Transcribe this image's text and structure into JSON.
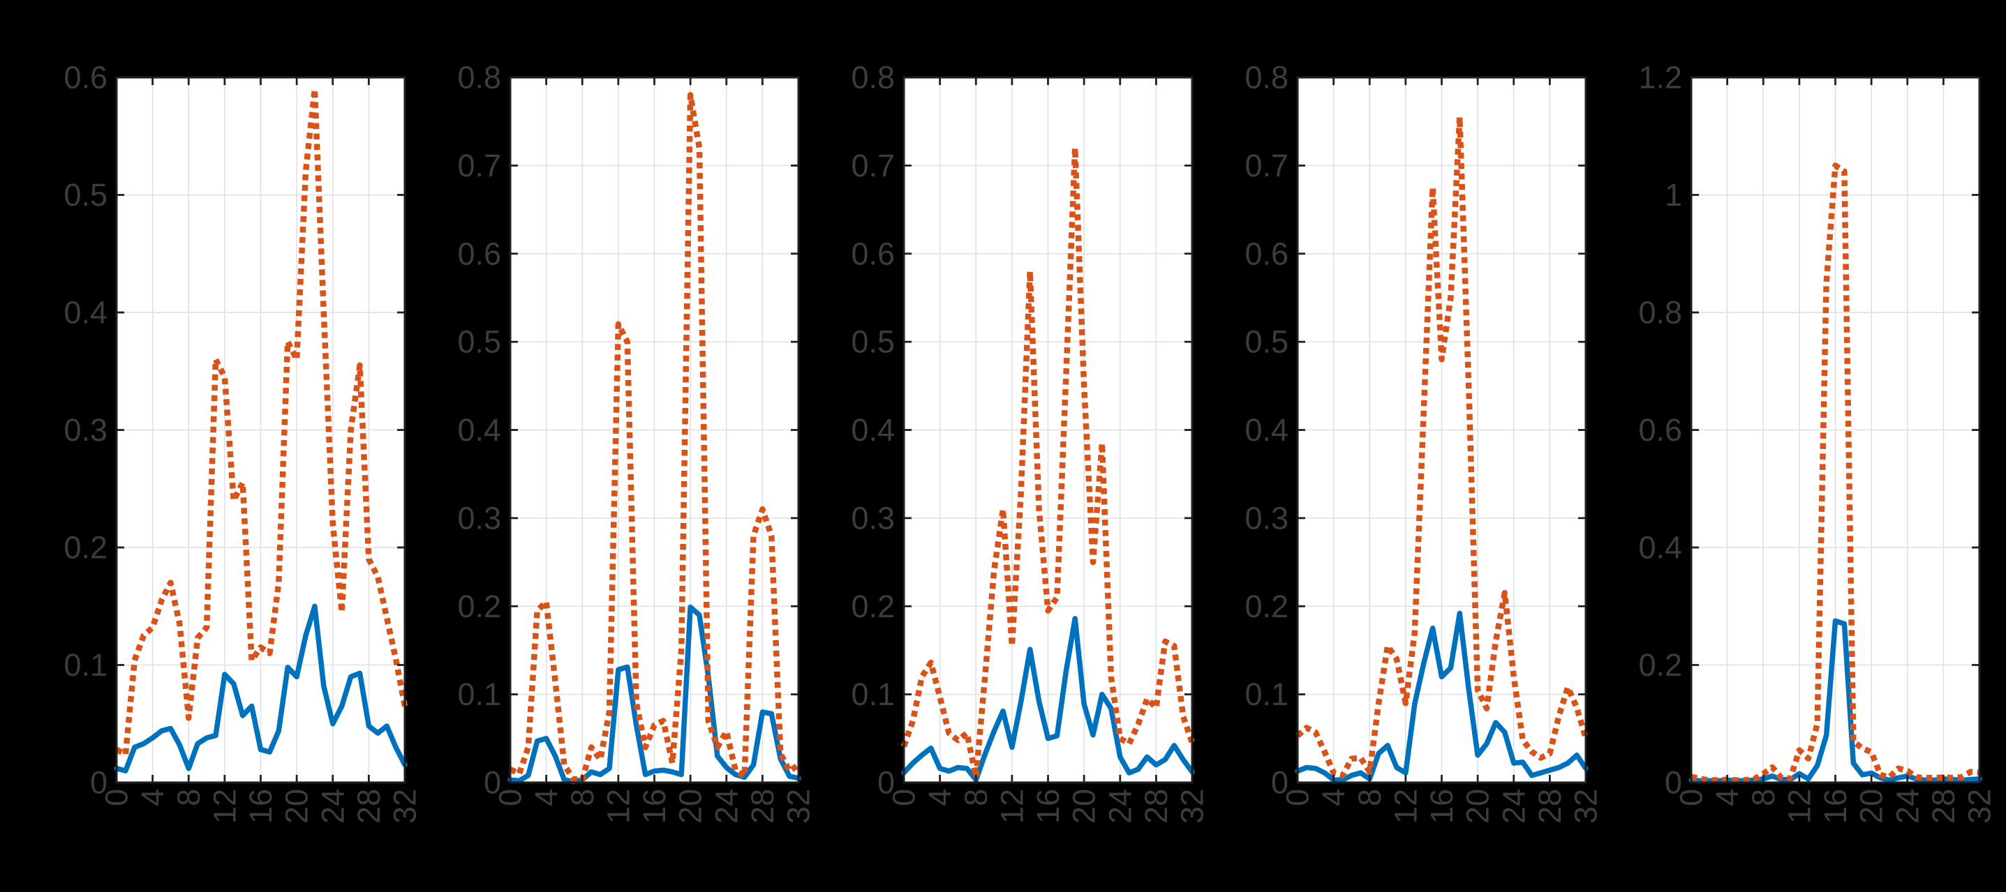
{
  "figure": {
    "background": "#000000",
    "plot_background": "#ffffff",
    "axis_color": "#1f1f1f",
    "grid_color": "#e3e3e3",
    "tick_label_color": "#3c3c3c",
    "tick_font_size": 45,
    "solid_line_color": "#0072BD",
    "dotted_line_color": "#D95319"
  },
  "chart_data": [
    {
      "type": "line",
      "title": "",
      "xlabel": "",
      "ylabel": "",
      "grid": true,
      "legend": null,
      "xlim": [
        0,
        32
      ],
      "ylim": [
        0,
        0.6
      ],
      "xtick_labels": [
        "0",
        "4",
        "8",
        "12",
        "16",
        "20",
        "24",
        "28",
        "32"
      ],
      "ytick_labels": [
        "0",
        "0.1",
        "0.2",
        "0.3",
        "0.4",
        "0.5",
        "0.6"
      ],
      "x": [
        0,
        1,
        2,
        3,
        4,
        5,
        6,
        7,
        8,
        9,
        10,
        11,
        12,
        13,
        14,
        15,
        16,
        17,
        18,
        19,
        20,
        21,
        22,
        23,
        24,
        25,
        26,
        27,
        28,
        29,
        30,
        31,
        32
      ],
      "series": [
        {
          "name": "solid-blue",
          "line_style": "solid",
          "color": "#0072BD",
          "values": [
            0.012,
            0.01,
            0.03,
            0.033,
            0.038,
            0.044,
            0.046,
            0.032,
            0.012,
            0.033,
            0.038,
            0.04,
            0.092,
            0.084,
            0.057,
            0.065,
            0.028,
            0.026,
            0.044,
            0.098,
            0.09,
            0.125,
            0.15,
            0.082,
            0.05,
            0.065,
            0.09,
            0.093,
            0.048,
            0.042,
            0.048,
            0.03,
            0.015
          ]
        },
        {
          "name": "dotted-orange",
          "line_style": "dotted",
          "color": "#D95319",
          "values": [
            0.028,
            0.024,
            0.104,
            0.125,
            0.132,
            0.155,
            0.17,
            0.135,
            0.055,
            0.123,
            0.132,
            0.36,
            0.345,
            0.24,
            0.255,
            0.104,
            0.115,
            0.11,
            0.17,
            0.375,
            0.36,
            0.52,
            0.59,
            0.4,
            0.22,
            0.145,
            0.3,
            0.355,
            0.19,
            0.175,
            0.14,
            0.105,
            0.065
          ]
        }
      ]
    },
    {
      "type": "line",
      "title": "",
      "xlabel": "",
      "ylabel": "",
      "grid": true,
      "legend": null,
      "xlim": [
        0,
        32
      ],
      "ylim": [
        0,
        0.8
      ],
      "xtick_labels": [
        "0",
        "4",
        "8",
        "12",
        "16",
        "20",
        "24",
        "28",
        "32"
      ],
      "ytick_labels": [
        "0",
        "0.1",
        "0.2",
        "0.3",
        "0.4",
        "0.5",
        "0.6",
        "0.7",
        "0.8"
      ],
      "x": [
        0,
        1,
        2,
        3,
        4,
        5,
        6,
        7,
        8,
        9,
        10,
        11,
        12,
        13,
        14,
        15,
        16,
        17,
        18,
        19,
        20,
        21,
        22,
        23,
        24,
        25,
        26,
        27,
        28,
        29,
        30,
        31,
        32
      ],
      "series": [
        {
          "name": "solid-blue",
          "line_style": "solid",
          "color": "#0072BD",
          "values": [
            0.003,
            0.002,
            0.008,
            0.047,
            0.05,
            0.03,
            0.003,
            0.001,
            0.003,
            0.012,
            0.009,
            0.016,
            0.128,
            0.131,
            0.065,
            0.009,
            0.013,
            0.014,
            0.012,
            0.009,
            0.199,
            0.19,
            0.12,
            0.03,
            0.017,
            0.009,
            0.006,
            0.02,
            0.08,
            0.078,
            0.027,
            0.007,
            0.005
          ]
        },
        {
          "name": "dotted-orange",
          "line_style": "dotted",
          "color": "#D95319",
          "values": [
            0.015,
            0.01,
            0.04,
            0.195,
            0.205,
            0.115,
            0.02,
            0.004,
            0.003,
            0.04,
            0.026,
            0.08,
            0.52,
            0.5,
            0.09,
            0.04,
            0.065,
            0.07,
            0.022,
            0.15,
            0.78,
            0.72,
            0.07,
            0.04,
            0.058,
            0.014,
            0.007,
            0.28,
            0.31,
            0.28,
            0.033,
            0.013,
            0.02
          ]
        }
      ]
    },
    {
      "type": "line",
      "title": "",
      "xlabel": "",
      "ylabel": "",
      "grid": true,
      "legend": null,
      "xlim": [
        0,
        32
      ],
      "ylim": [
        0,
        0.8
      ],
      "xtick_labels": [
        "0",
        "4",
        "8",
        "12",
        "16",
        "20",
        "24",
        "28",
        "32"
      ],
      "ytick_labels": [
        "0",
        "0.1",
        "0.2",
        "0.3",
        "0.4",
        "0.5",
        "0.6",
        "0.7",
        "0.8"
      ],
      "x": [
        0,
        1,
        2,
        3,
        4,
        5,
        6,
        7,
        8,
        9,
        10,
        11,
        12,
        13,
        14,
        15,
        16,
        17,
        18,
        19,
        20,
        21,
        22,
        23,
        24,
        25,
        26,
        27,
        28,
        29,
        30,
        31,
        32
      ],
      "series": [
        {
          "name": "solid-blue",
          "line_style": "solid",
          "color": "#0072BD",
          "values": [
            0.011,
            0.022,
            0.031,
            0.039,
            0.016,
            0.013,
            0.017,
            0.016,
            0.003,
            0.032,
            0.058,
            0.081,
            0.04,
            0.092,
            0.151,
            0.092,
            0.05,
            0.053,
            0.126,
            0.186,
            0.089,
            0.054,
            0.1,
            0.084,
            0.029,
            0.011,
            0.015,
            0.029,
            0.02,
            0.026,
            0.042,
            0.026,
            0.012
          ]
        },
        {
          "name": "dotted-orange",
          "line_style": "dotted",
          "color": "#D95319",
          "values": [
            0.041,
            0.07,
            0.12,
            0.136,
            0.097,
            0.056,
            0.048,
            0.056,
            0.006,
            0.12,
            0.24,
            0.31,
            0.155,
            0.33,
            0.58,
            0.31,
            0.195,
            0.21,
            0.46,
            0.72,
            0.45,
            0.25,
            0.385,
            0.12,
            0.05,
            0.044,
            0.066,
            0.095,
            0.085,
            0.16,
            0.155,
            0.075,
            0.045
          ]
        }
      ]
    },
    {
      "type": "line",
      "title": "",
      "xlabel": "",
      "ylabel": "",
      "grid": true,
      "legend": null,
      "xlim": [
        0,
        32
      ],
      "ylim": [
        0,
        0.8
      ],
      "xtick_labels": [
        "0",
        "4",
        "8",
        "12",
        "16",
        "20",
        "24",
        "28",
        "32"
      ],
      "ytick_labels": [
        "0",
        "0.1",
        "0.2",
        "0.3",
        "0.4",
        "0.5",
        "0.6",
        "0.7",
        "0.8"
      ],
      "x": [
        0,
        1,
        2,
        3,
        4,
        5,
        6,
        7,
        8,
        9,
        10,
        11,
        12,
        13,
        14,
        15,
        16,
        17,
        18,
        19,
        20,
        21,
        22,
        23,
        24,
        25,
        26,
        27,
        28,
        29,
        30,
        31,
        32
      ],
      "series": [
        {
          "name": "solid-blue",
          "line_style": "solid",
          "color": "#0072BD",
          "values": [
            0.013,
            0.017,
            0.016,
            0.011,
            0.003,
            0.003,
            0.008,
            0.011,
            0.004,
            0.033,
            0.042,
            0.017,
            0.011,
            0.089,
            0.135,
            0.175,
            0.12,
            0.13,
            0.192,
            0.106,
            0.031,
            0.044,
            0.068,
            0.057,
            0.022,
            0.023,
            0.008,
            0.011,
            0.014,
            0.017,
            0.022,
            0.031,
            0.016
          ]
        },
        {
          "name": "dotted-orange",
          "line_style": "dotted",
          "color": "#D95319",
          "values": [
            0.053,
            0.062,
            0.057,
            0.035,
            0.011,
            0.008,
            0.027,
            0.028,
            0.012,
            0.09,
            0.155,
            0.14,
            0.09,
            0.17,
            0.42,
            0.675,
            0.48,
            0.55,
            0.755,
            0.45,
            0.105,
            0.084,
            0.16,
            0.215,
            0.12,
            0.048,
            0.035,
            0.028,
            0.033,
            0.075,
            0.108,
            0.085,
            0.05
          ]
        }
      ]
    },
    {
      "type": "line",
      "title": "",
      "xlabel": "",
      "ylabel": "",
      "grid": true,
      "legend": null,
      "xlim": [
        0,
        32
      ],
      "ylim": [
        0,
        1.2
      ],
      "xtick_labels": [
        "0",
        "4",
        "8",
        "12",
        "16",
        "20",
        "24",
        "28",
        "32"
      ],
      "ytick_labels": [
        "0",
        "0.2",
        "0.4",
        "0.6",
        "0.8",
        "1",
        "1.2"
      ],
      "x": [
        0,
        1,
        2,
        3,
        4,
        5,
        6,
        7,
        8,
        9,
        10,
        11,
        12,
        13,
        14,
        15,
        16,
        17,
        18,
        19,
        20,
        21,
        22,
        23,
        24,
        25,
        26,
        27,
        28,
        29,
        30,
        31,
        32
      ],
      "series": [
        {
          "name": "solid-blue",
          "line_style": "solid",
          "color": "#0072BD",
          "values": [
            0.004,
            0.003,
            0.003,
            0.003,
            0.004,
            0.003,
            0.003,
            0.004,
            0.006,
            0.011,
            0.005,
            0.005,
            0.015,
            0.006,
            0.029,
            0.08,
            0.275,
            0.27,
            0.033,
            0.013,
            0.016,
            0.008,
            0.004,
            0.008,
            0.011,
            0.006,
            0.004,
            0.004,
            0.006,
            0.005,
            0.004,
            0.005,
            0.006
          ]
        },
        {
          "name": "dotted-orange",
          "line_style": "dotted",
          "color": "#D95319",
          "values": [
            0.01,
            0.006,
            0.004,
            0.004,
            0.005,
            0.004,
            0.004,
            0.006,
            0.015,
            0.026,
            0.008,
            0.007,
            0.055,
            0.041,
            0.1,
            0.85,
            1.05,
            1.04,
            0.07,
            0.058,
            0.052,
            0.013,
            0.009,
            0.024,
            0.02,
            0.009,
            0.008,
            0.008,
            0.009,
            0.008,
            0.009,
            0.018,
            0.017
          ]
        }
      ]
    }
  ]
}
